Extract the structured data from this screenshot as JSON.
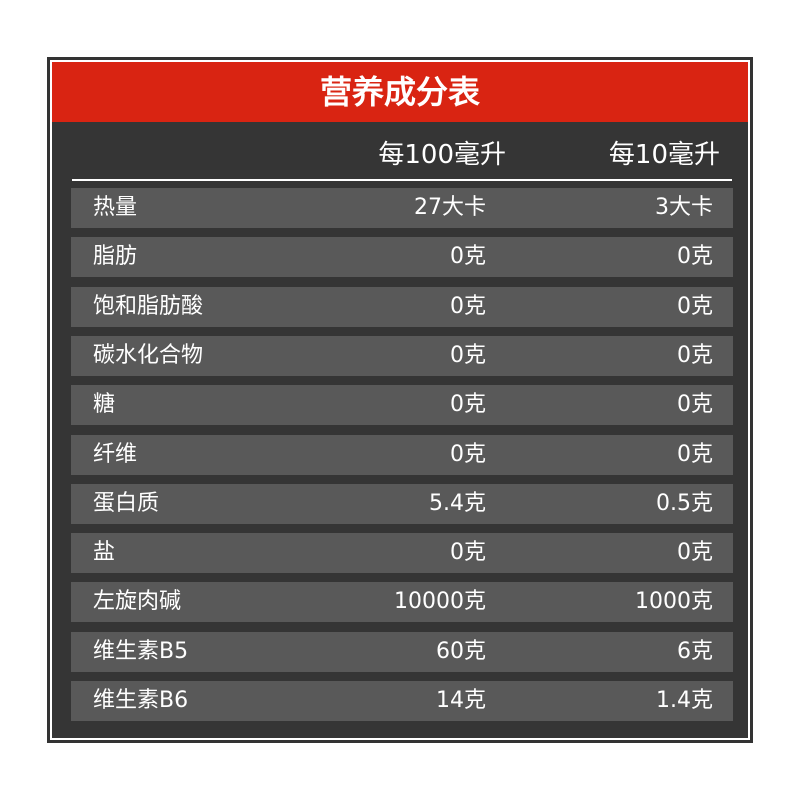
{
  "title": "营养成分表",
  "columns": [
    "每100毫升",
    "每10毫升"
  ],
  "rows": [
    {
      "name": "热量",
      "per100": "27大卡",
      "per10": "3大卡"
    },
    {
      "name": "脂肪",
      "per100": "0克",
      "per10": "0克"
    },
    {
      "name": "饱和脂肪酸",
      "per100": "0克",
      "per10": "0克"
    },
    {
      "name": "碳水化合物",
      "per100": "0克",
      "per10": "0克"
    },
    {
      "name": "糖",
      "per100": "0克",
      "per10": "0克"
    },
    {
      "name": "纤维",
      "per100": "0克",
      "per10": "0克"
    },
    {
      "name": "蛋白质",
      "per100": "5.4克",
      "per10": "0.5克"
    },
    {
      "name": "盐",
      "per100": "0克",
      "per10": "0克"
    },
    {
      "name": "左旋肉碱",
      "per100": "10000克",
      "per10": "1000克"
    },
    {
      "name": "维生素B5",
      "per100": "60克",
      "per10": "6克"
    },
    {
      "name": "维生素B6",
      "per100": "14克",
      "per10": "1.4克"
    }
  ],
  "colors": {
    "header": "#d92412",
    "background": "#353535",
    "row": "#595959"
  }
}
